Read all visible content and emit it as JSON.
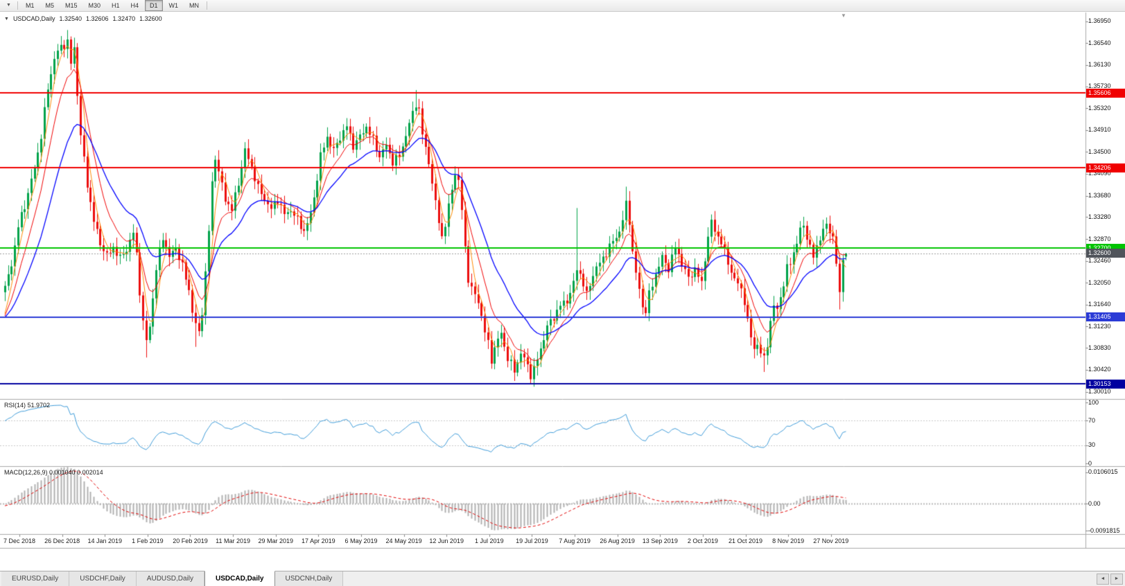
{
  "toolbar": {
    "chart_menu_icon": "▼",
    "timeframes": [
      "M1",
      "M5",
      "M15",
      "M30",
      "H1",
      "H4",
      "D1",
      "W1",
      "MN"
    ],
    "active": "D1"
  },
  "chart": {
    "collapse_icon": "▼",
    "title": "USDCAD,Daily",
    "open": "1.32540",
    "high": "1.32606",
    "low": "1.32470",
    "close": "1.32600",
    "shift_marker": "▼",
    "hlines": [
      {
        "label": "1.35606",
        "value": 1.35606,
        "color": "#F00000"
      },
      {
        "label": "1.34206",
        "value": 1.34206,
        "color": "#F00000"
      },
      {
        "label": "1.32700",
        "value": 1.327,
        "color": "#00C400"
      },
      {
        "label": "1.31405",
        "value": 1.31405,
        "color": "#2B3BD6"
      },
      {
        "label": "1.30153",
        "value": 1.30153,
        "color": "#0000A0"
      }
    ],
    "bid": {
      "label": "1.32600",
      "value": 1.326,
      "color": "#50545B"
    }
  },
  "price_axis": {
    "labels": [
      "1.36950",
      "1.36540",
      "1.36130",
      "1.35730",
      "1.35320",
      "1.34910",
      "1.34500",
      "1.34090",
      "1.33680",
      "1.33280",
      "1.32870",
      "1.32460",
      "1.32050",
      "1.31640",
      "1.31230",
      "1.30830",
      "1.30420",
      "1.30010"
    ]
  },
  "rsi": {
    "name_label": "RSI(14) 51.9702",
    "levels": [
      "100",
      "70",
      "30",
      "0"
    ]
  },
  "macd": {
    "name_label": "MACD(12,26,9) 0.001040 0.002014",
    "levels": [
      "0.0106015",
      "0.00",
      "-0.0091815"
    ]
  },
  "date_axis": [
    "7 Dec 2018",
    "26 Dec 2018",
    "14 Jan 2019",
    "1 Feb 2019",
    "20 Feb 2019",
    "11 Mar 2019",
    "29 Mar 2019",
    "17 Apr 2019",
    "6 May 2019",
    "24 May 2019",
    "12 Jun 2019",
    "1 Jul 2019",
    "19 Jul 2019",
    "7 Aug 2019",
    "26 Aug 2019",
    "13 Sep 2019",
    "2 Oct 2019",
    "21 Oct 2019",
    "8 Nov 2019",
    "27 Nov 2019"
  ],
  "tabs": {
    "items": [
      "EURUSD,Daily",
      "USDCHF,Daily",
      "AUDUSD,Daily",
      "USDCAD,Daily",
      "USDCNH,Daily"
    ],
    "active": "USDCAD,Daily",
    "scroll_left": "◄",
    "scroll_right": "►"
  },
  "chart_data": {
    "type": "candlestick",
    "symbol": "USDCAD",
    "timeframe": "Daily",
    "bar_count": 257,
    "visible_price_range": [
      1.2987,
      1.371
    ],
    "last_bar": {
      "open": 1.3254,
      "high": 1.32606,
      "low": 1.3247,
      "close": 1.326
    },
    "up_color": "#00A24A",
    "down_color": "#EC0D0D",
    "horizontal_levels": [
      1.35606,
      1.34206,
      1.327,
      1.31405,
      1.30153
    ],
    "moving_averages": [
      {
        "type": "sma",
        "period": 4,
        "color": "#FF8A00"
      },
      {
        "type": "ema",
        "period": 9,
        "color": "#F00000"
      },
      {
        "type": "ema",
        "period": 21,
        "color": "#0000FF"
      }
    ],
    "rsi": {
      "period": 14,
      "current": 51.9702,
      "color": "#3E9BD8",
      "levels": [
        70,
        30
      ]
    },
    "macd": {
      "fast": 12,
      "slow": 26,
      "signal_period": 9,
      "current_macd": 0.00104,
      "current_signal": 0.002014,
      "histogram_color": "#B0B0B0",
      "signal_color": "#E00000",
      "axis_range": [
        -0.0091815,
        0.0106015
      ]
    },
    "close_waypoints": [
      [
        0,
        1.3195
      ],
      [
        2,
        1.324
      ],
      [
        4,
        1.331
      ],
      [
        6,
        1.335
      ],
      [
        9,
        1.342
      ],
      [
        11,
        1.348
      ],
      [
        13,
        1.357
      ],
      [
        15,
        1.3625
      ],
      [
        17,
        1.3648
      ],
      [
        19,
        1.3655
      ],
      [
        20,
        1.3615
      ],
      [
        21,
        1.3645
      ],
      [
        22,
        1.356
      ],
      [
        23,
        1.348
      ],
      [
        25,
        1.339
      ],
      [
        27,
        1.332
      ],
      [
        29,
        1.328
      ],
      [
        31,
        1.3255
      ],
      [
        33,
        1.3272
      ],
      [
        35,
        1.325
      ],
      [
        37,
        1.3268
      ],
      [
        39,
        1.3298
      ],
      [
        40,
        1.3258
      ],
      [
        41,
        1.319
      ],
      [
        42,
        1.313
      ],
      [
        43,
        1.3095
      ],
      [
        44,
        1.3125
      ],
      [
        46,
        1.323
      ],
      [
        48,
        1.3292
      ],
      [
        50,
        1.3252
      ],
      [
        52,
        1.3272
      ],
      [
        54,
        1.3235
      ],
      [
        56,
        1.3192
      ],
      [
        57,
        1.3152
      ],
      [
        58,
        1.3125
      ],
      [
        59,
        1.3112
      ],
      [
        60,
        1.3152
      ],
      [
        61,
        1.3222
      ],
      [
        62,
        1.3302
      ],
      [
        63,
        1.3392
      ],
      [
        64,
        1.3442
      ],
      [
        65,
        1.3412
      ],
      [
        67,
        1.3362
      ],
      [
        69,
        1.3342
      ],
      [
        71,
        1.3392
      ],
      [
        73,
        1.3452
      ],
      [
        75,
        1.3422
      ],
      [
        77,
        1.3382
      ],
      [
        79,
        1.3362
      ],
      [
        81,
        1.3342
      ],
      [
        83,
        1.3362
      ],
      [
        85,
        1.3332
      ],
      [
        87,
        1.3342
      ],
      [
        89,
        1.3322
      ],
      [
        91,
        1.3302
      ],
      [
        93,
        1.3332
      ],
      [
        95,
        1.3402
      ],
      [
        96,
        1.3442
      ],
      [
        98,
        1.3478
      ],
      [
        100,
        1.3452
      ],
      [
        102,
        1.3478
      ],
      [
        104,
        1.3498
      ],
      [
        106,
        1.3462
      ],
      [
        108,
        1.3478
      ],
      [
        110,
        1.3498
      ],
      [
        112,
        1.3472
      ],
      [
        114,
        1.3442
      ],
      [
        116,
        1.3462
      ],
      [
        118,
        1.3432
      ],
      [
        120,
        1.3442
      ],
      [
        122,
        1.3482
      ],
      [
        124,
        1.3522
      ],
      [
        125,
        1.3542
      ],
      [
        126,
        1.3528
      ],
      [
        127,
        1.3482
      ],
      [
        129,
        1.3432
      ],
      [
        131,
        1.3352
      ],
      [
        133,
        1.3292
      ],
      [
        134,
        1.3312
      ],
      [
        136,
        1.3382
      ],
      [
        137,
        1.3412
      ],
      [
        138,
        1.3392
      ],
      [
        139,
        1.3342
      ],
      [
        140,
        1.3272
      ],
      [
        141,
        1.3212
      ],
      [
        142,
        1.3192
      ],
      [
        144,
        1.3172
      ],
      [
        146,
        1.3112
      ],
      [
        147,
        1.3092
      ],
      [
        148,
        1.3062
      ],
      [
        149,
        1.3082
      ],
      [
        151,
        1.3112
      ],
      [
        153,
        1.3062
      ],
      [
        155,
        1.3042
      ],
      [
        157,
        1.3072
      ],
      [
        159,
        1.3052
      ],
      [
        160,
        1.3032
      ],
      [
        161,
        1.3042
      ],
      [
        163,
        1.3082
      ],
      [
        165,
        1.3122
      ],
      [
        167,
        1.3142
      ],
      [
        169,
        1.3162
      ],
      [
        171,
        1.3172
      ],
      [
        173,
        1.3202
      ],
      [
        174,
        1.3232
      ],
      [
        175,
        1.3222
      ],
      [
        177,
        1.3182
      ],
      [
        179,
        1.3222
      ],
      [
        181,
        1.3242
      ],
      [
        183,
        1.3262
      ],
      [
        185,
        1.3282
      ],
      [
        187,
        1.3302
      ],
      [
        188,
        1.3322
      ],
      [
        189,
        1.3352
      ],
      [
        190,
        1.3322
      ],
      [
        191,
        1.3262
      ],
      [
        192,
        1.3222
      ],
      [
        193,
        1.3192
      ],
      [
        194,
        1.3162
      ],
      [
        195,
        1.3152
      ],
      [
        196,
        1.3182
      ],
      [
        198,
        1.3222
      ],
      [
        200,
        1.3252
      ],
      [
        202,
        1.3232
      ],
      [
        204,
        1.3272
      ],
      [
        206,
        1.3242
      ],
      [
        208,
        1.3212
      ],
      [
        210,
        1.3232
      ],
      [
        212,
        1.3202
      ],
      [
        213,
        1.3252
      ],
      [
        214,
        1.3292
      ],
      [
        215,
        1.3318
      ],
      [
        216,
        1.3302
      ],
      [
        218,
        1.3282
      ],
      [
        220,
        1.3242
      ],
      [
        222,
        1.3212
      ],
      [
        224,
        1.3192
      ],
      [
        225,
        1.3172
      ],
      [
        226,
        1.3132
      ],
      [
        227,
        1.3102
      ],
      [
        228,
        1.3082
      ],
      [
        229,
        1.3092
      ],
      [
        230,
        1.3072
      ],
      [
        231,
        1.3062
      ],
      [
        232,
        1.3092
      ],
      [
        233,
        1.3132
      ],
      [
        234,
        1.3162
      ],
      [
        235,
        1.3152
      ],
      [
        236,
        1.3182
      ],
      [
        237,
        1.3202
      ],
      [
        238,
        1.3232
      ],
      [
        239,
        1.3242
      ],
      [
        240,
        1.3262
      ],
      [
        241,
        1.3282
      ],
      [
        242,
        1.3302
      ],
      [
        243,
        1.3312
      ],
      [
        244,
        1.3292
      ],
      [
        245,
        1.3272
      ],
      [
        246,
        1.3252
      ],
      [
        247,
        1.3272
      ],
      [
        248,
        1.3292
      ],
      [
        249,
        1.3302
      ],
      [
        250,
        1.3312
      ],
      [
        251,
        1.3302
      ],
      [
        252,
        1.3292
      ],
      [
        253,
        1.3242
      ],
      [
        254,
        1.318
      ],
      [
        255,
        1.3255
      ],
      [
        256,
        1.326
      ]
    ],
    "wick_overrides": [
      {
        "i": 17,
        "high": 1.366
      },
      {
        "i": 19,
        "high": 1.3664
      },
      {
        "i": 21,
        "high": 1.366
      },
      {
        "i": 43,
        "low": 1.3065
      },
      {
        "i": 58,
        "low": 1.3085
      },
      {
        "i": 125,
        "high": 1.3566
      },
      {
        "i": 155,
        "low": 1.3022
      },
      {
        "i": 160,
        "low": 1.3016
      },
      {
        "i": 174,
        "high": 1.3345
      },
      {
        "i": 189,
        "high": 1.3385
      },
      {
        "i": 231,
        "low": 1.3038
      },
      {
        "i": 254,
        "low": 1.3155
      }
    ]
  }
}
